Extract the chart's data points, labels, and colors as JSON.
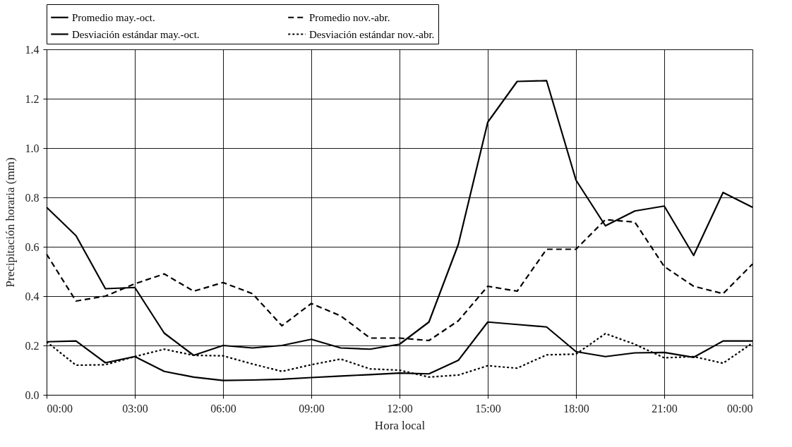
{
  "chart_data": {
    "type": "line",
    "xlabel": "Hora local",
    "ylabel": "Precipitación horaria (mm)",
    "x": [
      0,
      1,
      2,
      3,
      4,
      5,
      6,
      7,
      8,
      9,
      10,
      11,
      12,
      13,
      14,
      15,
      16,
      17,
      18,
      19,
      20,
      21,
      22,
      23,
      24
    ],
    "series": [
      {
        "name": "Promedio may.-oct.",
        "color": "#000000",
        "line_style": "solid",
        "values": [
          0.76,
          0.645,
          0.43,
          0.435,
          0.25,
          0.16,
          0.2,
          0.19,
          0.2,
          0.225,
          0.19,
          0.185,
          0.205,
          0.295,
          0.61,
          1.105,
          1.27,
          1.273,
          0.87,
          0.685,
          0.745,
          0.765,
          0.565,
          0.82,
          0.76
        ]
      },
      {
        "name": "Promedio nov.-abr.",
        "color": "#000000",
        "line_style": "dashed",
        "values": [
          0.57,
          0.38,
          0.4,
          0.45,
          0.49,
          0.42,
          0.455,
          0.41,
          0.28,
          0.37,
          0.32,
          0.23,
          0.23,
          0.22,
          0.3,
          0.44,
          0.42,
          0.59,
          0.59,
          0.71,
          0.7,
          0.52,
          0.44,
          0.41,
          0.53
        ]
      },
      {
        "name": "Desviación estándar may.-oct.",
        "color": "#000000",
        "line_style": "solid",
        "values": [
          0.215,
          0.218,
          0.13,
          0.155,
          0.095,
          0.072,
          0.058,
          0.06,
          0.063,
          0.07,
          0.076,
          0.082,
          0.088,
          0.085,
          0.14,
          0.295,
          0.285,
          0.275,
          0.175,
          0.155,
          0.17,
          0.172,
          0.152,
          0.218,
          0.218
        ]
      },
      {
        "name": "Desviación estándar nov.-abr.",
        "color": "#000000",
        "line_style": "dotted",
        "values": [
          0.215,
          0.12,
          0.122,
          0.155,
          0.185,
          0.16,
          0.158,
          0.125,
          0.095,
          0.122,
          0.145,
          0.105,
          0.1,
          0.072,
          0.08,
          0.118,
          0.108,
          0.162,
          0.165,
          0.248,
          0.205,
          0.15,
          0.155,
          0.128,
          0.21
        ]
      }
    ],
    "xlim": [
      0,
      24
    ],
    "xticks": [
      {
        "value": 0,
        "label": "00:00"
      },
      {
        "value": 3,
        "label": "03:00"
      },
      {
        "value": 6,
        "label": "06:00"
      },
      {
        "value": 9,
        "label": "09:00"
      },
      {
        "value": 12,
        "label": "12:00"
      },
      {
        "value": 15,
        "label": "15:00"
      },
      {
        "value": 18,
        "label": "18:00"
      },
      {
        "value": 21,
        "label": "21:00"
      },
      {
        "value": 24,
        "label": "00:00"
      }
    ],
    "ylim": [
      0,
      1.4
    ],
    "yticks": [
      {
        "value": 0,
        "label": "0.0"
      },
      {
        "value": 0.2,
        "label": "0.2"
      },
      {
        "value": 0.4,
        "label": "0.4"
      },
      {
        "value": 0.6,
        "label": "0.6"
      },
      {
        "value": 0.8,
        "label": "0.8"
      },
      {
        "value": 1,
        "label": "1.0"
      },
      {
        "value": 1.2,
        "label": "1.2"
      },
      {
        "value": 1.4,
        "label": "1.4"
      }
    ],
    "grid": true,
    "legend": "top",
    "marker": "none"
  }
}
